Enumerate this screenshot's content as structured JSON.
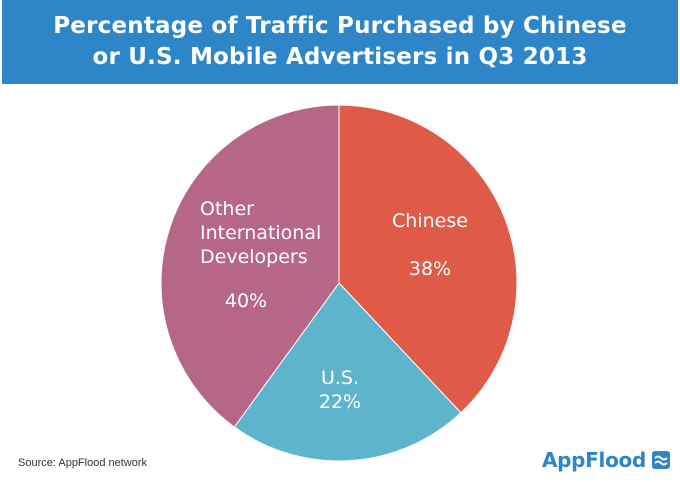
{
  "header": {
    "title_line1": "Percentage of Traffic Purchased by Chinese",
    "title_line2": "or U.S. Mobile Advertisers in Q3 2013"
  },
  "chart_data": {
    "type": "pie",
    "title": "Percentage of Traffic Purchased by Chinese or U.S. Mobile Advertisers in Q3 2013",
    "slices": [
      {
        "label_lines": [
          "Chinese"
        ],
        "value": 38,
        "value_label": "38%",
        "color": "#e05a48"
      },
      {
        "label_lines": [
          "U.S."
        ],
        "value": 22,
        "value_label": "22%",
        "color": "#5fb4cd"
      },
      {
        "label_lines": [
          "Other",
          "International",
          "Developers"
        ],
        "value": 40,
        "value_label": "40%",
        "color": "#b66686"
      }
    ]
  },
  "footer": {
    "source": "Source: AppFlood network",
    "brand": "AppFlood",
    "brand_icon": "appflood-logo-icon",
    "brand_color": "#2e86c8"
  }
}
